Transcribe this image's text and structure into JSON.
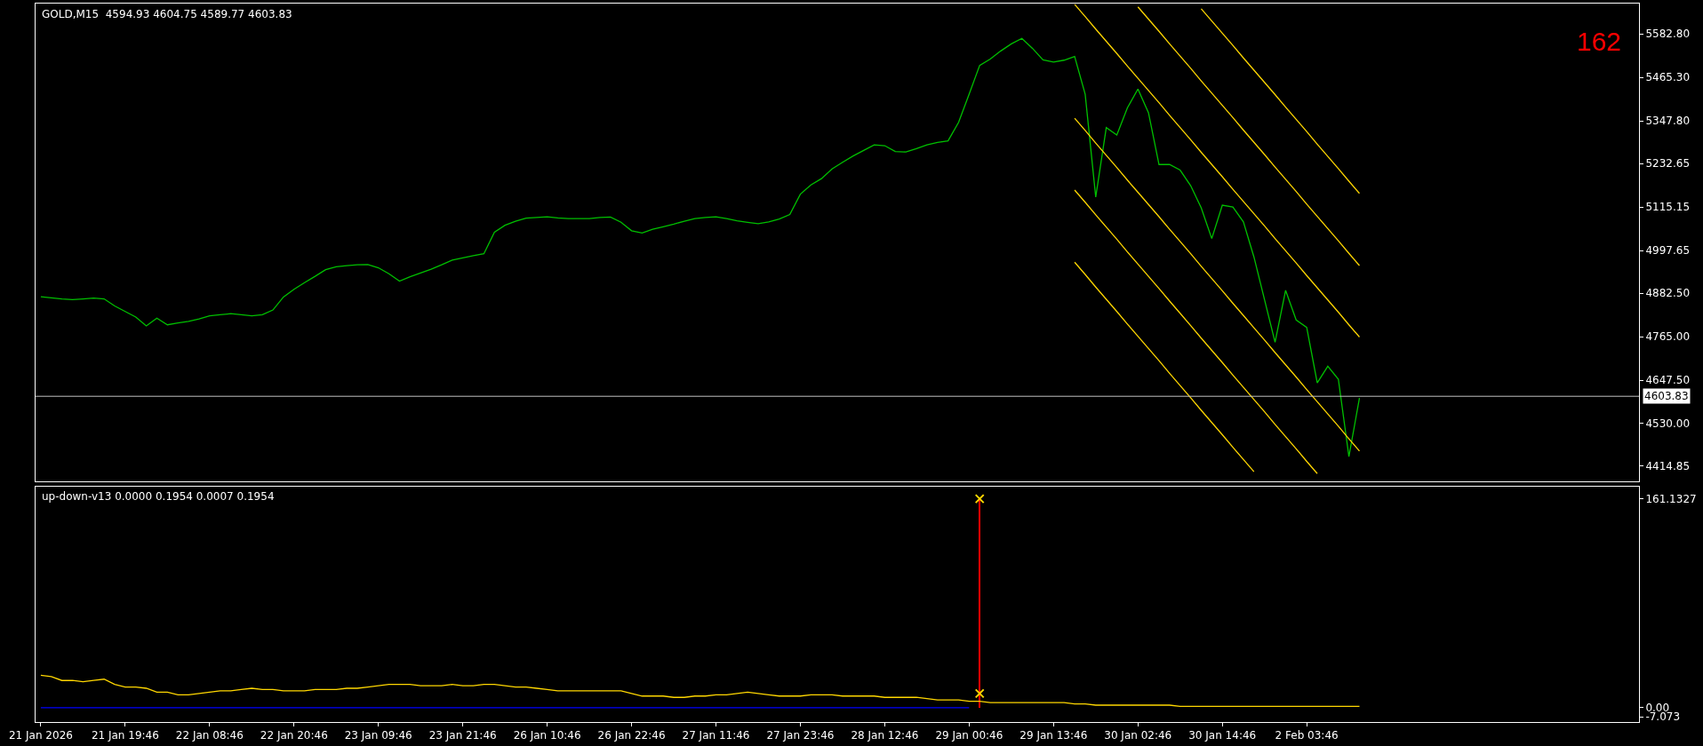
{
  "chart_data": [
    {
      "type": "line",
      "title": "GOLD,M15  4594.93 4604.75 4589.77 4603.83",
      "categories": [
        null,
        null,
        null,
        null,
        null,
        null,
        null,
        null,
        null,
        null,
        null,
        null,
        null,
        null,
        null,
        null,
        null,
        null,
        null,
        null,
        null,
        null,
        null,
        null,
        null,
        null,
        null,
        null,
        null,
        null,
        null,
        null,
        null,
        null,
        null,
        null,
        null,
        null,
        null,
        null,
        null,
        null,
        null,
        null,
        null,
        null,
        null,
        null,
        null,
        null,
        null,
        null,
        null,
        null,
        null,
        null,
        null,
        null,
        null,
        null,
        null,
        null,
        null,
        null,
        null,
        null,
        null,
        null,
        null,
        null,
        null,
        null,
        null,
        null,
        null,
        null,
        null,
        null,
        null,
        null,
        null,
        null,
        null,
        null,
        null,
        null,
        null,
        null,
        null,
        null,
        null,
        null,
        null,
        null,
        null,
        null,
        null,
        null,
        null,
        null,
        null,
        null,
        null,
        null,
        null,
        null,
        null,
        null,
        null,
        null,
        null,
        null,
        null,
        null,
        null,
        null,
        null,
        null,
        null,
        null,
        null,
        null,
        null,
        null,
        null,
        null,
        null,
        null,
        null,
        null,
        null,
        null,
        null,
        null,
        null,
        null,
        null,
        null,
        null,
        null,
        null,
        null,
        null,
        null,
        null,
        null,
        null,
        null,
        null,
        null,
        null,
        null
      ],
      "ylim": [
        4374,
        5665
      ],
      "yticks": [
        {
          "value": 4414.85,
          "label": "4414.85"
        },
        {
          "value": 4530,
          "label": "4530.00"
        },
        {
          "value": 4647.5,
          "label": "4647.50"
        },
        {
          "value": 4765,
          "label": "4765.00"
        },
        {
          "value": 4882.5,
          "label": "4882.50"
        },
        {
          "value": 4997.65,
          "label": "4997.65"
        },
        {
          "value": 5115.15,
          "label": "5115.15"
        },
        {
          "value": 5232.65,
          "label": "5232.65"
        },
        {
          "value": 5347.8,
          "label": "5347.80"
        },
        {
          "value": 5465.3,
          "label": "5465.30"
        },
        {
          "value": 5582.8,
          "label": "5582.80"
        }
      ],
      "tick_labels": "y",
      "grid": false,
      "series": [
        {
          "color": "#00c000",
          "values": [
            4873,
            4870,
            4867,
            4865,
            4867,
            4869,
            4867,
            4848,
            4833,
            4818,
            4794,
            4815,
            4797,
            4802,
            4806,
            4813,
            4821,
            4824,
            4827,
            4824,
            4821,
            4824,
            4837,
            4872,
            4893,
            4911,
            4928,
            4946,
            4954,
            4957,
            4959,
            4960,
            4951,
            4935,
            4915,
            4927,
            4937,
            4947,
            4959,
            4972,
            4978,
            4984,
            4989,
            5047,
            5066,
            5077,
            5085,
            5087,
            5089,
            5086,
            5084,
            5084,
            5084,
            5087,
            5088,
            5074,
            5051,
            5045,
            5055,
            5062,
            5069,
            5077,
            5084,
            5087,
            5089,
            5084,
            5078,
            5074,
            5070,
            5075,
            5083,
            5095,
            5150,
            5175,
            5192,
            5218,
            5236,
            5253,
            5268,
            5283,
            5281,
            5265,
            5264,
            5273,
            5283,
            5290,
            5294,
            5344,
            5420,
            5498,
            5515,
            5537,
            5556,
            5571,
            5544,
            5513,
            5507,
            5512,
            5522,
            5420,
            5142,
            5330,
            5310,
            5383,
            5434,
            5370,
            5230,
            5230,
            5215,
            5173,
            5113,
            5030,
            5120,
            5115,
            5075,
            4980,
            4865,
            4750,
            4890,
            4810,
            4790,
            4640,
            4685,
            4650,
            4441,
            4599,
            null,
            null,
            null,
            null,
            null,
            null,
            null,
            null,
            null,
            null,
            null,
            null,
            null,
            null,
            null,
            null,
            null,
            null,
            null,
            null,
            null,
            null,
            null,
            null,
            null,
            null
          ]
        },
        {
          "color": "#ffd700",
          "values": [
            null,
            null,
            null,
            null,
            null,
            null,
            null,
            null,
            null,
            null,
            null,
            null,
            null,
            null,
            null,
            null,
            null,
            null,
            null,
            null,
            null,
            null,
            null,
            null,
            null,
            null,
            null,
            null,
            null,
            null,
            null,
            null,
            null,
            null,
            null,
            null,
            null,
            null,
            null,
            null,
            null,
            null,
            null,
            null,
            null,
            null,
            null,
            null,
            null,
            null,
            null,
            null,
            null,
            null,
            null,
            null,
            null,
            null,
            null,
            null,
            null,
            null,
            null,
            null,
            null,
            null,
            null,
            null,
            null,
            null,
            null,
            null,
            null,
            null,
            null,
            null,
            null,
            null,
            null,
            null,
            null,
            null,
            null,
            null,
            null,
            null,
            null,
            null,
            null,
            null,
            null,
            null,
            null,
            null,
            null,
            null,
            null,
            null,
            null,
            null,
            null,
            null,
            null,
            null,
            null,
            null,
            null,
            null,
            null,
            null,
            5651,
            5618,
            5585,
            5552,
            5518,
            5485,
            5452,
            5419,
            5385,
            5352,
            5319,
            5285,
            5252,
            5219,
            5185,
            5152,
            null,
            null,
            null,
            null,
            null,
            null,
            null,
            null,
            null,
            null,
            null,
            null,
            null,
            null,
            null,
            null,
            null,
            null,
            null,
            null,
            null,
            null,
            null,
            null,
            null,
            null
          ]
        },
        {
          "color": "#ffd700",
          "values": [
            null,
            null,
            null,
            null,
            null,
            null,
            null,
            null,
            null,
            null,
            null,
            null,
            null,
            null,
            null,
            null,
            null,
            null,
            null,
            null,
            null,
            null,
            null,
            null,
            null,
            null,
            null,
            null,
            null,
            null,
            null,
            null,
            null,
            null,
            null,
            null,
            null,
            null,
            null,
            null,
            null,
            null,
            null,
            null,
            null,
            null,
            null,
            null,
            null,
            null,
            null,
            null,
            null,
            null,
            null,
            null,
            null,
            null,
            null,
            null,
            null,
            null,
            null,
            null,
            null,
            null,
            null,
            null,
            null,
            null,
            null,
            null,
            null,
            null,
            null,
            null,
            null,
            null,
            null,
            null,
            null,
            null,
            null,
            null,
            null,
            null,
            null,
            null,
            null,
            null,
            null,
            null,
            null,
            null,
            null,
            null,
            null,
            null,
            null,
            null,
            null,
            null,
            null,
            null,
            5656,
            5623,
            5590,
            5556,
            5523,
            5490,
            5456,
            5423,
            5390,
            5357,
            5323,
            5290,
            5257,
            5223,
            5190,
            5157,
            5123,
            5090,
            5057,
            5024,
            4990,
            4957,
            null,
            null,
            null,
            null,
            null,
            null,
            null,
            null,
            null,
            null,
            null,
            null,
            null,
            null,
            null,
            null,
            null,
            null,
            null,
            null,
            null,
            null,
            null,
            null,
            null,
            null
          ]
        },
        {
          "color": "#ffd700",
          "values": [
            null,
            null,
            null,
            null,
            null,
            null,
            null,
            null,
            null,
            null,
            null,
            null,
            null,
            null,
            null,
            null,
            null,
            null,
            null,
            null,
            null,
            null,
            null,
            null,
            null,
            null,
            null,
            null,
            null,
            null,
            null,
            null,
            null,
            null,
            null,
            null,
            null,
            null,
            null,
            null,
            null,
            null,
            null,
            null,
            null,
            null,
            null,
            null,
            null,
            null,
            null,
            null,
            null,
            null,
            null,
            null,
            null,
            null,
            null,
            null,
            null,
            null,
            null,
            null,
            null,
            null,
            null,
            null,
            null,
            null,
            null,
            null,
            null,
            null,
            null,
            null,
            null,
            null,
            null,
            null,
            null,
            null,
            null,
            null,
            null,
            null,
            null,
            null,
            null,
            null,
            null,
            null,
            null,
            null,
            null,
            null,
            null,
            null,
            5663,
            5630,
            5596,
            5563,
            5530,
            5496,
            5463,
            5430,
            5397,
            5363,
            5330,
            5297,
            5263,
            5230,
            5197,
            5163,
            5130,
            5097,
            5064,
            5030,
            4997,
            4964,
            4930,
            4897,
            4864,
            4831,
            4797,
            4764,
            null,
            null,
            null,
            null,
            null,
            null,
            null,
            null,
            null,
            null,
            null,
            null,
            null,
            null,
            null,
            null,
            null,
            null,
            null,
            null,
            null,
            null,
            null,
            null,
            null,
            null
          ]
        },
        {
          "color": "#ffd700",
          "values": [
            null,
            null,
            null,
            null,
            null,
            null,
            null,
            null,
            null,
            null,
            null,
            null,
            null,
            null,
            null,
            null,
            null,
            null,
            null,
            null,
            null,
            null,
            null,
            null,
            null,
            null,
            null,
            null,
            null,
            null,
            null,
            null,
            null,
            null,
            null,
            null,
            null,
            null,
            null,
            null,
            null,
            null,
            null,
            null,
            null,
            null,
            null,
            null,
            null,
            null,
            null,
            null,
            null,
            null,
            null,
            null,
            null,
            null,
            null,
            null,
            null,
            null,
            null,
            null,
            null,
            null,
            null,
            null,
            null,
            null,
            null,
            null,
            null,
            null,
            null,
            null,
            null,
            null,
            null,
            null,
            null,
            null,
            null,
            null,
            null,
            null,
            null,
            null,
            null,
            null,
            null,
            null,
            null,
            null,
            null,
            null,
            null,
            null,
            5355,
            5322,
            5288,
            5255,
            5222,
            5188,
            5155,
            5122,
            5089,
            5055,
            5022,
            4989,
            4955,
            4922,
            4889,
            4855,
            4822,
            4789,
            4756,
            4722,
            4689,
            4656,
            4622,
            4589,
            4556,
            4523,
            4489,
            4456,
            null,
            null,
            null,
            null,
            null,
            null,
            null,
            null,
            null,
            null,
            null,
            null,
            null,
            null,
            null,
            null,
            null,
            null,
            null,
            null,
            null,
            null,
            null,
            null,
            null,
            null
          ]
        },
        {
          "color": "#ffd700",
          "values": [
            null,
            null,
            null,
            null,
            null,
            null,
            null,
            null,
            null,
            null,
            null,
            null,
            null,
            null,
            null,
            null,
            null,
            null,
            null,
            null,
            null,
            null,
            null,
            null,
            null,
            null,
            null,
            null,
            null,
            null,
            null,
            null,
            null,
            null,
            null,
            null,
            null,
            null,
            null,
            null,
            null,
            null,
            null,
            null,
            null,
            null,
            null,
            null,
            null,
            null,
            null,
            null,
            null,
            null,
            null,
            null,
            null,
            null,
            null,
            null,
            null,
            null,
            null,
            null,
            null,
            null,
            null,
            null,
            null,
            null,
            null,
            null,
            null,
            null,
            null,
            null,
            null,
            null,
            null,
            null,
            null,
            null,
            null,
            null,
            null,
            null,
            null,
            null,
            null,
            null,
            null,
            null,
            null,
            null,
            null,
            null,
            null,
            null,
            5161,
            5128,
            5094,
            5061,
            5028,
            4994,
            4961,
            4928,
            4895,
            4861,
            4828,
            4795,
            4761,
            4728,
            4695,
            4661,
            4628,
            4595,
            4562,
            4528,
            4495,
            4462,
            4428,
            4395,
            null,
            null,
            null,
            null,
            null,
            null,
            null,
            null,
            null,
            null,
            null,
            null,
            null,
            null,
            null,
            null,
            null,
            null,
            null,
            null,
            null,
            null,
            null,
            null,
            null,
            null,
            null,
            null,
            null,
            null
          ]
        },
        {
          "color": "#ffd700",
          "values": [
            null,
            null,
            null,
            null,
            null,
            null,
            null,
            null,
            null,
            null,
            null,
            null,
            null,
            null,
            null,
            null,
            null,
            null,
            null,
            null,
            null,
            null,
            null,
            null,
            null,
            null,
            null,
            null,
            null,
            null,
            null,
            null,
            null,
            null,
            null,
            null,
            null,
            null,
            null,
            null,
            null,
            null,
            null,
            null,
            null,
            null,
            null,
            null,
            null,
            null,
            null,
            null,
            null,
            null,
            null,
            null,
            null,
            null,
            null,
            null,
            null,
            null,
            null,
            null,
            null,
            null,
            null,
            null,
            null,
            null,
            null,
            null,
            null,
            null,
            null,
            null,
            null,
            null,
            null,
            null,
            null,
            null,
            null,
            null,
            null,
            null,
            null,
            null,
            null,
            null,
            null,
            null,
            null,
            null,
            null,
            null,
            null,
            null,
            4966,
            4933,
            4899,
            4866,
            4833,
            4799,
            4766,
            4733,
            4700,
            4666,
            4633,
            4600,
            4566,
            4533,
            4500,
            4466,
            4433,
            4400,
            null,
            null,
            null,
            null,
            null,
            null,
            null,
            null,
            null,
            null,
            null,
            null,
            null,
            null,
            null,
            null,
            null,
            null,
            null,
            null,
            null,
            null,
            null,
            null,
            null,
            null,
            null,
            null,
            null,
            null,
            null,
            null,
            null,
            null,
            null,
            null
          ]
        }
      ],
      "ref_lines": [
        {
          "axis": "y",
          "value": 4603.83,
          "label": "4603.83",
          "color": "#c0c0c0"
        }
      ],
      "annotations": [
        "162"
      ]
    },
    {
      "type": "line",
      "title": "up-down-v13 0.0000 0.1954 0.0007 0.1954",
      "categories": [
        "21 Jan 2026",
        null,
        null,
        null,
        null,
        null,
        null,
        null,
        "21 Jan 19:46",
        null,
        null,
        null,
        null,
        null,
        null,
        null,
        "22 Jan 08:46",
        null,
        null,
        null,
        null,
        null,
        null,
        null,
        "22 Jan 20:46",
        null,
        null,
        null,
        null,
        null,
        null,
        null,
        "23 Jan 09:46",
        null,
        null,
        null,
        null,
        null,
        null,
        null,
        "23 Jan 21:46",
        null,
        null,
        null,
        null,
        null,
        null,
        null,
        "26 Jan 10:46",
        null,
        null,
        null,
        null,
        null,
        null,
        null,
        "26 Jan 22:46",
        null,
        null,
        null,
        null,
        null,
        null,
        null,
        "27 Jan 11:46",
        null,
        null,
        null,
        null,
        null,
        null,
        null,
        "27 Jan 23:46",
        null,
        null,
        null,
        null,
        null,
        null,
        null,
        "28 Jan 12:46",
        null,
        null,
        null,
        null,
        null,
        null,
        null,
        "29 Jan 00:46",
        null,
        null,
        null,
        null,
        null,
        null,
        null,
        "29 Jan 13:46",
        null,
        null,
        null,
        null,
        null,
        null,
        null,
        "30 Jan 02:46",
        null,
        null,
        null,
        null,
        null,
        null,
        null,
        "30 Jan 14:46",
        null,
        null,
        null,
        null,
        null,
        null,
        null,
        "2 Feb 03:46",
        null,
        null,
        null,
        null,
        null,
        null,
        null,
        null,
        null,
        null,
        null,
        null,
        null,
        null,
        null,
        null,
        null,
        null,
        null,
        null,
        null,
        null,
        null,
        null,
        null,
        null,
        null,
        null,
        null,
        null,
        null
      ],
      "ylim": [
        -11,
        170
      ],
      "yticks": [
        {
          "value": 161.1327,
          "label": "161.1327"
        },
        {
          "value": 0,
          "label": "0.00"
        },
        -7.073
      ],
      "grid": false,
      "series": [
        {
          "color": "#ffd700",
          "values": [
            25,
            24,
            21,
            21,
            20,
            21,
            22,
            18,
            16,
            16,
            15,
            12,
            12,
            10,
            10,
            11,
            12,
            13,
            13,
            14,
            15,
            14,
            14,
            13,
            13,
            13,
            14,
            14,
            14,
            15,
            15,
            16,
            17,
            18,
            18,
            18,
            17,
            17,
            17,
            18,
            17,
            17,
            18,
            18,
            17,
            16,
            16,
            15,
            14,
            13,
            13,
            13,
            13,
            13,
            13,
            13,
            11,
            9,
            9,
            9,
            8,
            8,
            9,
            9,
            10,
            10,
            11,
            12,
            11,
            10,
            9,
            9,
            9,
            10,
            10,
            10,
            9,
            9,
            9,
            9,
            8,
            8,
            8,
            8,
            7,
            6,
            6,
            6,
            5,
            5,
            4,
            4,
            4,
            4,
            4,
            4,
            4,
            4,
            3,
            3,
            2,
            2,
            2,
            2,
            2,
            2,
            2,
            2,
            1,
            1,
            1,
            1,
            1,
            1,
            1,
            1,
            1,
            1,
            1,
            1,
            1,
            1,
            1,
            1,
            1,
            1,
            null,
            null,
            null,
            null,
            null,
            null,
            null,
            null,
            null,
            null,
            null,
            null,
            null,
            null,
            null,
            null,
            null,
            null,
            null,
            null,
            null,
            null,
            null,
            null,
            null,
            null
          ]
        },
        {
          "color": "#0000ff",
          "values": [
            0,
            0,
            0,
            0,
            0,
            0,
            0,
            0,
            0,
            0,
            0,
            0,
            0,
            0,
            0,
            0,
            0,
            0,
            0,
            0,
            0,
            0,
            0,
            0,
            0,
            0,
            0,
            0,
            0,
            0,
            0,
            0,
            0,
            0,
            0,
            0,
            0,
            0,
            0,
            0,
            0,
            0,
            0,
            0,
            0,
            0,
            0,
            0,
            0,
            0,
            0,
            0,
            0,
            0,
            0,
            0,
            0,
            0,
            0,
            0,
            0,
            0,
            0,
            0,
            0,
            0,
            0,
            0,
            0,
            0,
            0,
            0,
            0,
            0,
            0,
            0,
            0,
            0,
            0,
            0,
            0,
            0,
            0,
            0,
            0,
            0,
            0,
            0,
            0,
            null,
            null,
            null,
            null,
            null,
            null,
            null,
            null,
            null,
            null,
            null,
            null,
            null,
            null,
            null,
            null,
            null,
            null,
            null,
            null,
            null,
            null,
            null,
            null,
            null,
            null,
            null,
            null,
            null,
            null,
            null,
            null,
            null,
            null,
            null,
            null,
            null,
            null,
            null,
            null,
            null,
            null,
            null,
            null,
            null,
            null,
            null,
            null,
            null,
            null,
            null,
            null,
            null,
            null,
            null,
            null,
            null,
            null,
            null,
            null,
            null,
            null,
            null
          ]
        },
        {
          "type": "bar",
          "color": "#ff0000",
          "values": [
            null,
            null,
            null,
            null,
            null,
            null,
            null,
            null,
            null,
            null,
            null,
            null,
            null,
            null,
            null,
            null,
            null,
            null,
            null,
            null,
            null,
            null,
            null,
            null,
            null,
            null,
            null,
            null,
            null,
            null,
            null,
            null,
            null,
            null,
            null,
            null,
            null,
            null,
            null,
            null,
            null,
            null,
            null,
            null,
            null,
            null,
            null,
            null,
            null,
            null,
            null,
            null,
            null,
            null,
            null,
            null,
            null,
            null,
            null,
            null,
            null,
            null,
            null,
            null,
            null,
            null,
            null,
            null,
            null,
            null,
            null,
            null,
            null,
            null,
            null,
            null,
            null,
            null,
            null,
            null,
            null,
            null,
            null,
            null,
            null,
            null,
            null,
            null,
            null,
            161,
            null,
            null,
            null,
            null,
            null,
            null,
            null,
            null,
            null,
            null,
            null,
            null,
            null,
            null,
            null,
            null,
            null,
            null,
            null,
            null,
            null,
            null,
            null,
            null,
            null,
            null,
            null,
            null,
            null,
            null,
            null,
            null,
            null,
            null,
            null,
            null,
            null,
            null,
            null,
            null,
            null,
            null,
            null,
            null,
            null,
            null,
            null,
            null,
            null,
            null,
            null,
            null,
            null,
            null,
            null,
            null,
            null,
            null,
            null,
            null,
            null,
            null
          ]
        },
        {
          "type": "scatter",
          "marker": "cross",
          "color": "#ffd700",
          "values": [
            null,
            null,
            null,
            null,
            null,
            null,
            null,
            null,
            null,
            null,
            null,
            null,
            null,
            null,
            null,
            null,
            null,
            null,
            null,
            null,
            null,
            null,
            null,
            null,
            null,
            null,
            null,
            null,
            null,
            null,
            null,
            null,
            null,
            null,
            null,
            null,
            null,
            null,
            null,
            null,
            null,
            null,
            null,
            null,
            null,
            null,
            null,
            null,
            null,
            null,
            null,
            null,
            null,
            null,
            null,
            null,
            null,
            null,
            null,
            null,
            null,
            null,
            null,
            null,
            null,
            null,
            null,
            null,
            null,
            null,
            null,
            null,
            null,
            null,
            null,
            null,
            null,
            null,
            null,
            null,
            null,
            null,
            null,
            null,
            null,
            null,
            null,
            null,
            null,
            161,
            null,
            null,
            null,
            null,
            null,
            null,
            null,
            null,
            null,
            null,
            null,
            null,
            null,
            null,
            null,
            null,
            null,
            null,
            null,
            null,
            null,
            null,
            null,
            null,
            null,
            null,
            null,
            null,
            null,
            null,
            null,
            null,
            null,
            null,
            null,
            null,
            null,
            null,
            null,
            null,
            null,
            null,
            null,
            null,
            null,
            null,
            null,
            null,
            null,
            null,
            null,
            null,
            null,
            null,
            null,
            null,
            null,
            null,
            null,
            null,
            null,
            null
          ]
        },
        {
          "type": "scatter",
          "marker": "cross",
          "color": "#ffd700",
          "values": [
            null,
            null,
            null,
            null,
            null,
            null,
            null,
            null,
            null,
            null,
            null,
            null,
            null,
            null,
            null,
            null,
            null,
            null,
            null,
            null,
            null,
            null,
            null,
            null,
            null,
            null,
            null,
            null,
            null,
            null,
            null,
            null,
            null,
            null,
            null,
            null,
            null,
            null,
            null,
            null,
            null,
            null,
            null,
            null,
            null,
            null,
            null,
            null,
            null,
            null,
            null,
            null,
            null,
            null,
            null,
            null,
            null,
            null,
            null,
            null,
            null,
            null,
            null,
            null,
            null,
            null,
            null,
            null,
            null,
            null,
            null,
            null,
            null,
            null,
            null,
            null,
            null,
            null,
            null,
            null,
            null,
            null,
            null,
            null,
            null,
            null,
            null,
            null,
            null,
            11,
            null,
            null,
            null,
            null,
            null,
            null,
            null,
            null,
            null,
            null,
            null,
            null,
            null,
            null,
            null,
            null,
            null,
            null,
            null,
            null,
            null,
            null,
            null,
            null,
            null,
            null,
            null,
            null,
            null,
            null,
            null,
            null,
            null,
            null,
            null,
            null,
            null,
            null,
            null,
            null,
            null,
            null,
            null,
            null,
            null,
            null,
            null,
            null,
            null,
            null,
            null,
            null,
            null,
            null,
            null,
            null,
            null,
            null,
            null,
            null,
            null,
            null
          ]
        }
      ]
    }
  ]
}
